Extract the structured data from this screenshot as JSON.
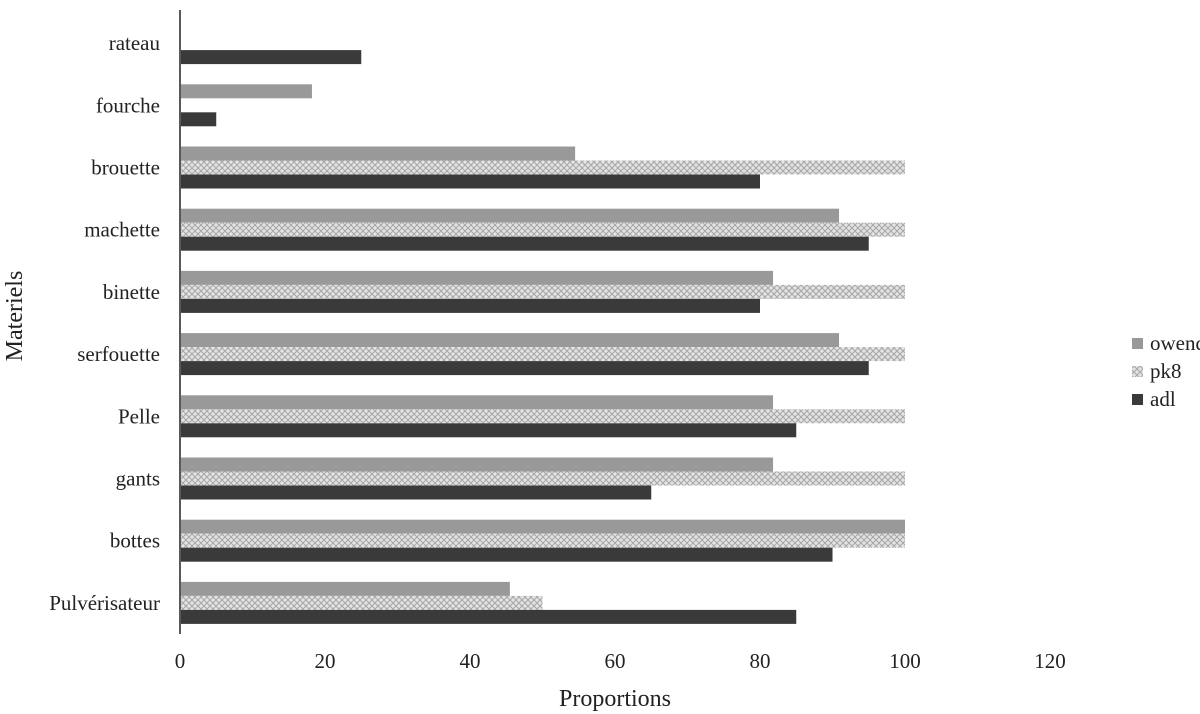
{
  "chart_data": {
    "type": "bar",
    "orientation": "horizontal",
    "categories": [
      "Pulvérisateur",
      "bottes",
      "gants",
      "Pelle",
      "serfouette",
      "binette",
      "machette",
      "brouette",
      "fourche",
      "rateau"
    ],
    "series": [
      {
        "name": "owendo",
        "values": [
          45.5,
          100,
          81.8,
          81.8,
          90.9,
          81.8,
          90.9,
          54.5,
          18.2,
          0
        ],
        "color": "#999999",
        "pattern": "solid"
      },
      {
        "name": "pk8",
        "values": [
          50,
          100,
          100,
          100,
          100,
          100,
          100,
          100,
          0,
          0
        ],
        "color": "#d6d6d6",
        "pattern": "crosshatch"
      },
      {
        "name": "adl",
        "values": [
          85,
          90,
          65,
          85,
          95,
          80,
          95,
          80,
          5,
          25
        ],
        "color": "#3a3a3a",
        "pattern": "solid"
      }
    ],
    "xlabel": "Proportions",
    "ylabel": "Materiels",
    "xlim": [
      0,
      120
    ],
    "xticks": [
      0,
      20,
      40,
      60,
      80,
      100,
      120
    ],
    "grid": false,
    "legend_position": "right"
  }
}
